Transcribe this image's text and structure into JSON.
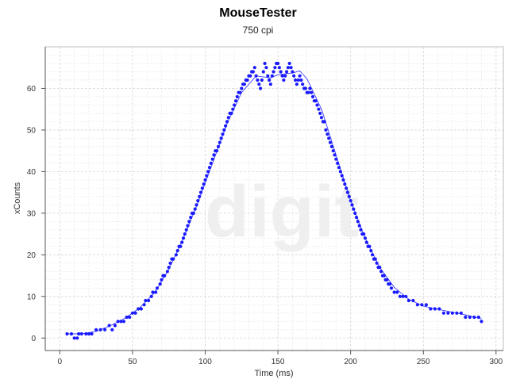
{
  "chart_data": {
    "type": "scatter",
    "title": "MouseTester",
    "subtitle": "750 cpi",
    "xlabel": "Time (ms)",
    "ylabel": "xCounts",
    "xlim": [
      -10,
      305
    ],
    "ylim": [
      -3,
      70
    ],
    "xticks": [
      0,
      50,
      100,
      150,
      200,
      250,
      300
    ],
    "yticks": [
      0,
      10,
      20,
      30,
      40,
      50,
      60
    ],
    "grid": true,
    "watermark": "digit",
    "colors": {
      "series": "#1a1aff",
      "grid": "#e3e3e3",
      "axis": "#555555",
      "watermark": "#efefef"
    },
    "series": [
      {
        "style": "points",
        "points": [
          [
            5,
            1
          ],
          [
            8,
            1
          ],
          [
            10,
            0
          ],
          [
            12,
            0
          ],
          [
            13,
            1
          ],
          [
            15,
            1
          ],
          [
            18,
            1
          ],
          [
            20,
            1
          ],
          [
            22,
            1
          ],
          [
            25,
            2
          ],
          [
            28,
            2
          ],
          [
            31,
            2
          ],
          [
            34,
            3
          ],
          [
            36,
            2
          ],
          [
            38,
            3
          ],
          [
            40,
            4
          ],
          [
            42,
            4
          ],
          [
            44,
            4
          ],
          [
            46,
            5
          ],
          [
            48,
            5
          ],
          [
            50,
            6
          ],
          [
            52,
            6
          ],
          [
            54,
            7
          ],
          [
            56,
            7
          ],
          [
            58,
            8
          ],
          [
            59,
            9
          ],
          [
            61,
            9
          ],
          [
            63,
            10
          ],
          [
            64,
            11
          ],
          [
            66,
            11
          ],
          [
            67,
            12
          ],
          [
            69,
            13
          ],
          [
            70,
            14
          ],
          [
            71,
            15
          ],
          [
            72,
            15
          ],
          [
            74,
            16
          ],
          [
            75,
            17
          ],
          [
            76,
            18
          ],
          [
            77,
            19
          ],
          [
            78,
            19
          ],
          [
            80,
            20
          ],
          [
            81,
            21
          ],
          [
            82,
            22
          ],
          [
            83,
            22
          ],
          [
            84,
            23
          ],
          [
            85,
            24
          ],
          [
            86,
            25
          ],
          [
            87,
            26
          ],
          [
            88,
            27
          ],
          [
            89,
            28
          ],
          [
            90,
            29
          ],
          [
            91,
            30
          ],
          [
            92,
            30
          ],
          [
            93,
            31
          ],
          [
            94,
            32
          ],
          [
            95,
            33
          ],
          [
            96,
            34
          ],
          [
            97,
            35
          ],
          [
            98,
            36
          ],
          [
            99,
            37
          ],
          [
            100,
            38
          ],
          [
            101,
            39
          ],
          [
            102,
            40
          ],
          [
            103,
            41
          ],
          [
            104,
            42
          ],
          [
            105,
            43
          ],
          [
            106,
            44
          ],
          [
            107,
            45
          ],
          [
            108,
            45
          ],
          [
            109,
            46
          ],
          [
            110,
            47
          ],
          [
            111,
            48
          ],
          [
            112,
            49
          ],
          [
            113,
            50
          ],
          [
            114,
            51
          ],
          [
            115,
            52
          ],
          [
            116,
            53
          ],
          [
            117,
            54
          ],
          [
            118,
            54
          ],
          [
            119,
            55
          ],
          [
            120,
            56
          ],
          [
            121,
            57
          ],
          [
            122,
            58
          ],
          [
            123,
            59
          ],
          [
            124,
            59
          ],
          [
            125,
            60
          ],
          [
            126,
            61
          ],
          [
            127,
            61
          ],
          [
            128,
            62
          ],
          [
            129,
            62
          ],
          [
            130,
            63
          ],
          [
            131,
            63
          ],
          [
            132,
            64
          ],
          [
            133,
            64
          ],
          [
            134,
            65
          ],
          [
            135,
            63
          ],
          [
            136,
            62
          ],
          [
            137,
            61
          ],
          [
            138,
            60
          ],
          [
            139,
            62
          ],
          [
            140,
            64
          ],
          [
            141,
            66
          ],
          [
            142,
            65
          ],
          [
            143,
            63
          ],
          [
            144,
            62
          ],
          [
            145,
            61
          ],
          [
            146,
            63
          ],
          [
            147,
            64
          ],
          [
            148,
            65
          ],
          [
            149,
            66
          ],
          [
            150,
            66
          ],
          [
            151,
            65
          ],
          [
            152,
            64
          ],
          [
            153,
            63
          ],
          [
            154,
            62
          ],
          [
            155,
            63
          ],
          [
            156,
            64
          ],
          [
            157,
            65
          ],
          [
            158,
            66
          ],
          [
            159,
            65
          ],
          [
            160,
            64
          ],
          [
            161,
            63
          ],
          [
            162,
            62
          ],
          [
            163,
            61
          ],
          [
            164,
            62
          ],
          [
            165,
            63
          ],
          [
            166,
            62
          ],
          [
            167,
            61
          ],
          [
            168,
            60
          ],
          [
            169,
            60
          ],
          [
            170,
            59
          ],
          [
            171,
            59
          ],
          [
            172,
            60
          ],
          [
            173,
            59
          ],
          [
            174,
            58
          ],
          [
            175,
            57
          ],
          [
            176,
            57
          ],
          [
            177,
            56
          ],
          [
            178,
            55
          ],
          [
            179,
            54
          ],
          [
            180,
            53
          ],
          [
            181,
            52
          ],
          [
            182,
            52
          ],
          [
            183,
            50
          ],
          [
            184,
            49
          ],
          [
            185,
            48
          ],
          [
            186,
            47
          ],
          [
            187,
            46
          ],
          [
            188,
            45
          ],
          [
            189,
            44
          ],
          [
            190,
            43
          ],
          [
            191,
            42
          ],
          [
            192,
            41
          ],
          [
            193,
            40
          ],
          [
            194,
            39
          ],
          [
            195,
            38
          ],
          [
            196,
            37
          ],
          [
            197,
            36
          ],
          [
            198,
            35
          ],
          [
            199,
            34
          ],
          [
            200,
            33
          ],
          [
            201,
            32
          ],
          [
            202,
            31
          ],
          [
            203,
            30
          ],
          [
            204,
            29
          ],
          [
            205,
            28
          ],
          [
            206,
            27
          ],
          [
            207,
            26
          ],
          [
            208,
            25
          ],
          [
            209,
            25
          ],
          [
            210,
            24
          ],
          [
            211,
            23
          ],
          [
            212,
            22
          ],
          [
            213,
            22
          ],
          [
            214,
            21
          ],
          [
            215,
            20
          ],
          [
            216,
            19
          ],
          [
            217,
            19
          ],
          [
            218,
            18
          ],
          [
            219,
            17
          ],
          [
            220,
            17
          ],
          [
            221,
            16
          ],
          [
            222,
            15
          ],
          [
            223,
            15
          ],
          [
            224,
            14
          ],
          [
            225,
            14
          ],
          [
            226,
            13
          ],
          [
            227,
            13
          ],
          [
            228,
            12
          ],
          [
            230,
            11
          ],
          [
            232,
            11
          ],
          [
            234,
            10
          ],
          [
            236,
            10
          ],
          [
            238,
            10
          ],
          [
            240,
            9
          ],
          [
            243,
            9
          ],
          [
            246,
            8
          ],
          [
            249,
            8
          ],
          [
            252,
            8
          ],
          [
            255,
            7
          ],
          [
            258,
            7
          ],
          [
            261,
            7
          ],
          [
            264,
            6
          ],
          [
            267,
            6
          ],
          [
            270,
            6
          ],
          [
            273,
            6
          ],
          [
            276,
            6
          ],
          [
            279,
            5
          ],
          [
            282,
            5
          ],
          [
            285,
            5
          ],
          [
            288,
            5
          ],
          [
            290,
            4
          ]
        ]
      },
      {
        "style": "line",
        "points": [
          [
            5,
            1
          ],
          [
            15,
            1
          ],
          [
            25,
            1.6
          ],
          [
            35,
            3
          ],
          [
            45,
            4.8
          ],
          [
            55,
            7.3
          ],
          [
            65,
            10.8
          ],
          [
            75,
            16.5
          ],
          [
            85,
            24
          ],
          [
            95,
            32.5
          ],
          [
            105,
            42
          ],
          [
            115,
            51.5
          ],
          [
            125,
            59
          ],
          [
            135,
            63
          ],
          [
            145,
            62.5
          ],
          [
            150,
            63.3
          ],
          [
            160,
            63.7
          ],
          [
            165,
            64.2
          ],
          [
            170,
            62.3
          ],
          [
            180,
            55
          ],
          [
            190,
            44
          ],
          [
            200,
            33
          ],
          [
            210,
            24
          ],
          [
            220,
            17
          ],
          [
            230,
            12.2
          ],
          [
            240,
            9.3
          ],
          [
            250,
            7.7
          ],
          [
            260,
            6.9
          ],
          [
            270,
            6.2
          ],
          [
            280,
            5.5
          ],
          [
            290,
            4.6
          ]
        ]
      }
    ]
  }
}
